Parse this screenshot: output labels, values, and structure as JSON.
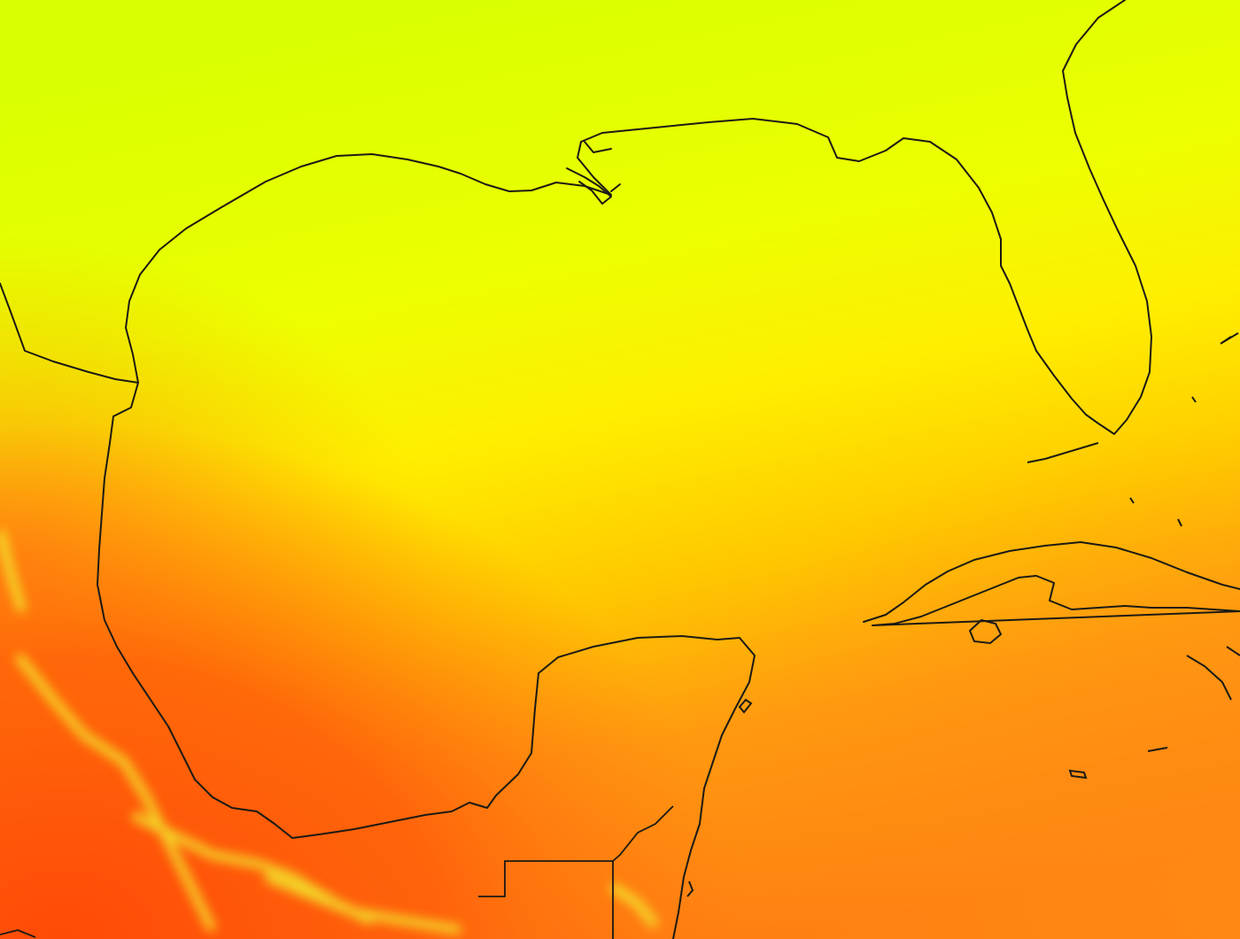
{
  "map": {
    "kind": "sea-surface temperature heatmap",
    "region": "Gulf of Mexico",
    "colormap": {
      "cool": "#e4ff00",
      "mid": "#ffd200",
      "warm": "#ff8c14",
      "hot": "#ff4d0a",
      "highland": "#f4ff3a"
    },
    "outline_color": "#1c1a14",
    "labels": []
  }
}
